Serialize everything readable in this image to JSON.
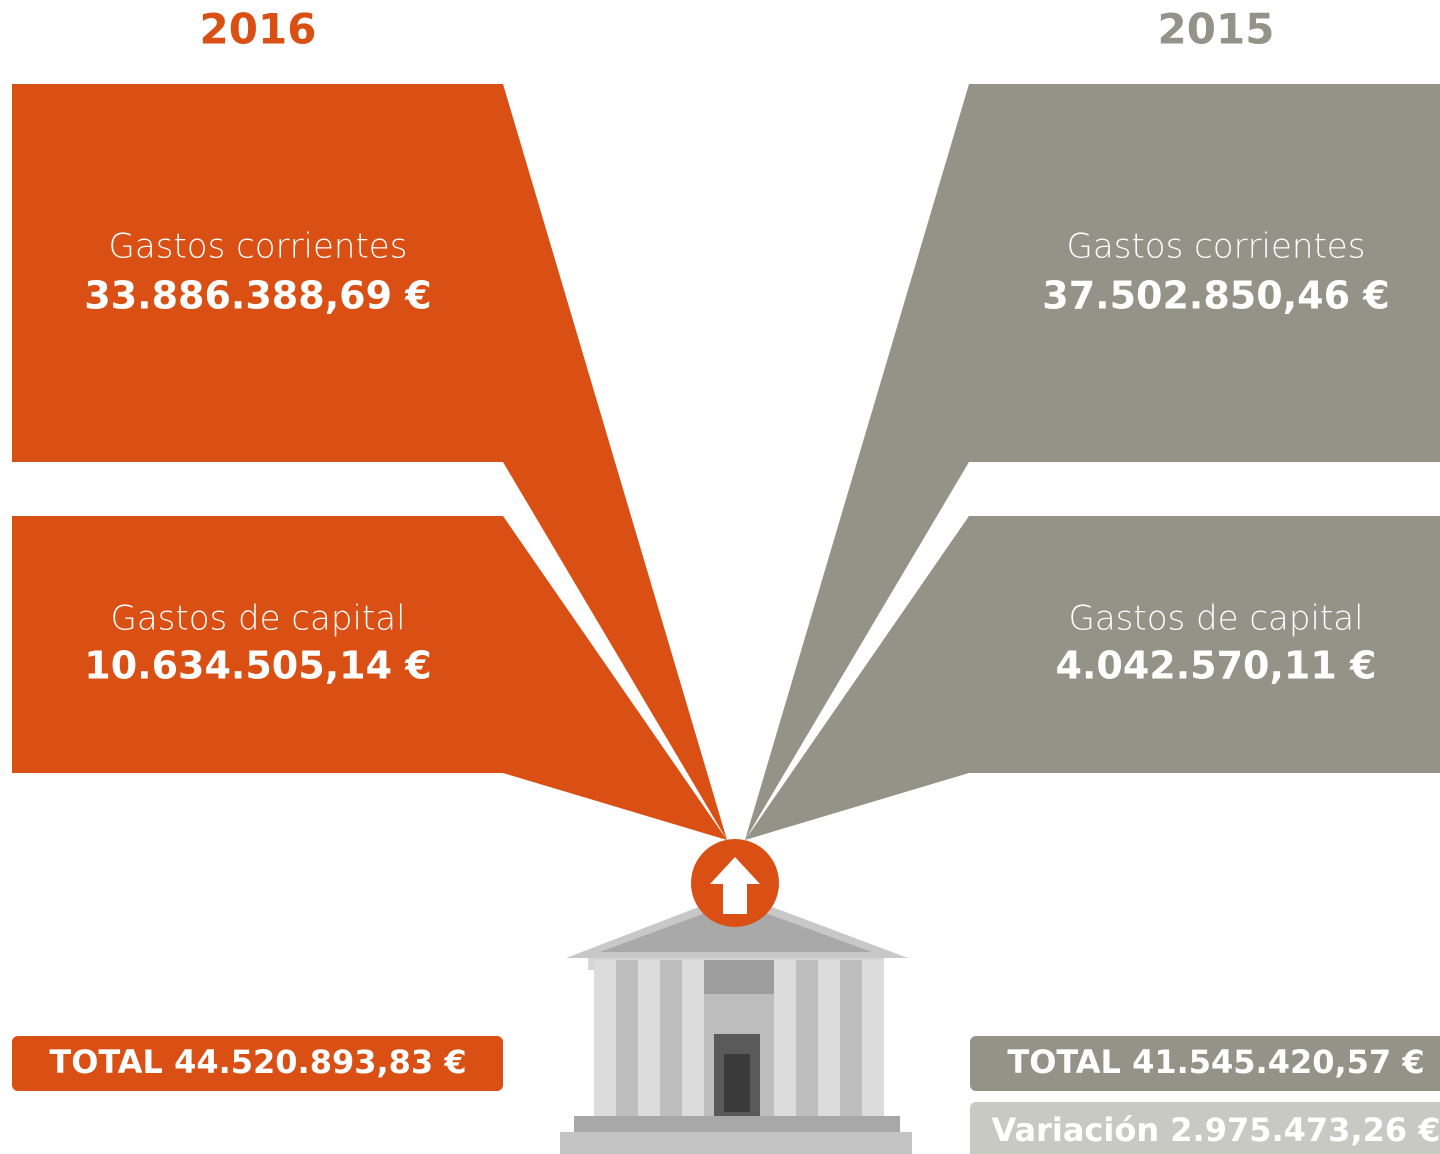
{
  "left": {
    "year": "2016",
    "items": [
      {
        "label": "Gastos corrientes",
        "amount": "33.886.388,69 €"
      },
      {
        "label": "Gastos de capital",
        "amount": "10.634.505,14 €"
      }
    ],
    "total": "TOTAL 44.520.893,83 €"
  },
  "right": {
    "year": "2015",
    "items": [
      {
        "label": "Gastos corrientes",
        "amount": "37.502.850,46 €"
      },
      {
        "label": "Gastos de capital",
        "amount": "4.042.570,11 €"
      }
    ],
    "total": "TOTAL 41.545.420,57 €"
  },
  "variation": "Variación 2.975.473,26 €"
}
